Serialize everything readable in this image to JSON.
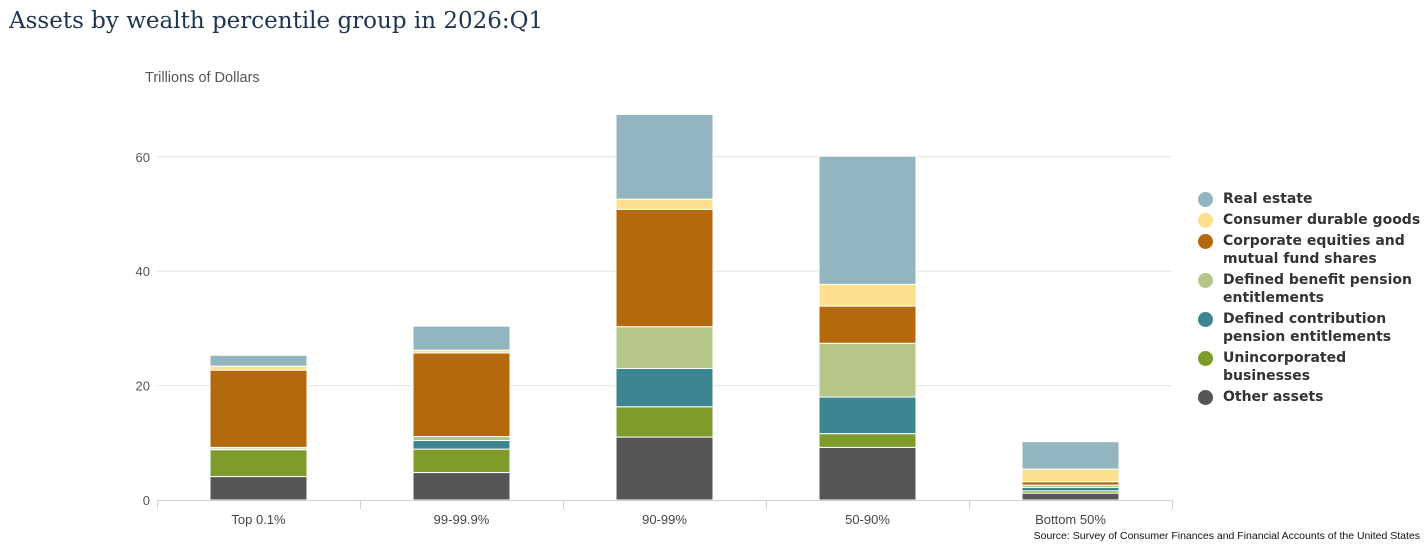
{
  "title": "Assets by wealth percentile group in 2026:Q1",
  "source": "Source: Survey of Consumer Finances and Financial Accounts of the United States",
  "chart_data": {
    "type": "bar",
    "stacked": true,
    "categories": [
      "Top 0.1%",
      "99-99.9%",
      "90-99%",
      "50-90%",
      "Bottom 50%"
    ],
    "ylabel": "Trillions of Dollars",
    "ylim": [
      0,
      70
    ],
    "yticks": [
      0,
      20,
      40,
      60
    ],
    "grid": true,
    "legend_position": "right",
    "series": [
      {
        "name": "Other assets",
        "color": "#555555",
        "values": [
          4.1,
          4.8,
          11.0,
          9.2,
          1.2
        ]
      },
      {
        "name": "Unincorporated businesses",
        "color": "#7f9b2c",
        "values": [
          4.7,
          4.1,
          5.3,
          2.4,
          0.4
        ]
      },
      {
        "name": "Defined contribution pension entitlements",
        "color": "#3d8592",
        "values": [
          0.1,
          1.5,
          6.7,
          6.4,
          0.6
        ]
      },
      {
        "name": "Defined benefit pension entitlements",
        "color": "#b6c688",
        "values": [
          0.3,
          0.7,
          7.3,
          9.4,
          0.4
        ]
      },
      {
        "name": "Corporate equities and mutual fund shares",
        "color": "#b5690d",
        "values": [
          13.5,
          14.6,
          20.5,
          6.5,
          0.6
        ]
      },
      {
        "name": "Consumer durable goods",
        "color": "#fce08f",
        "values": [
          0.7,
          0.5,
          1.8,
          3.8,
          2.2
        ]
      },
      {
        "name": "Real estate",
        "color": "#92b6bf",
        "values": [
          1.9,
          4.2,
          14.8,
          22.4,
          4.8
        ]
      }
    ]
  }
}
